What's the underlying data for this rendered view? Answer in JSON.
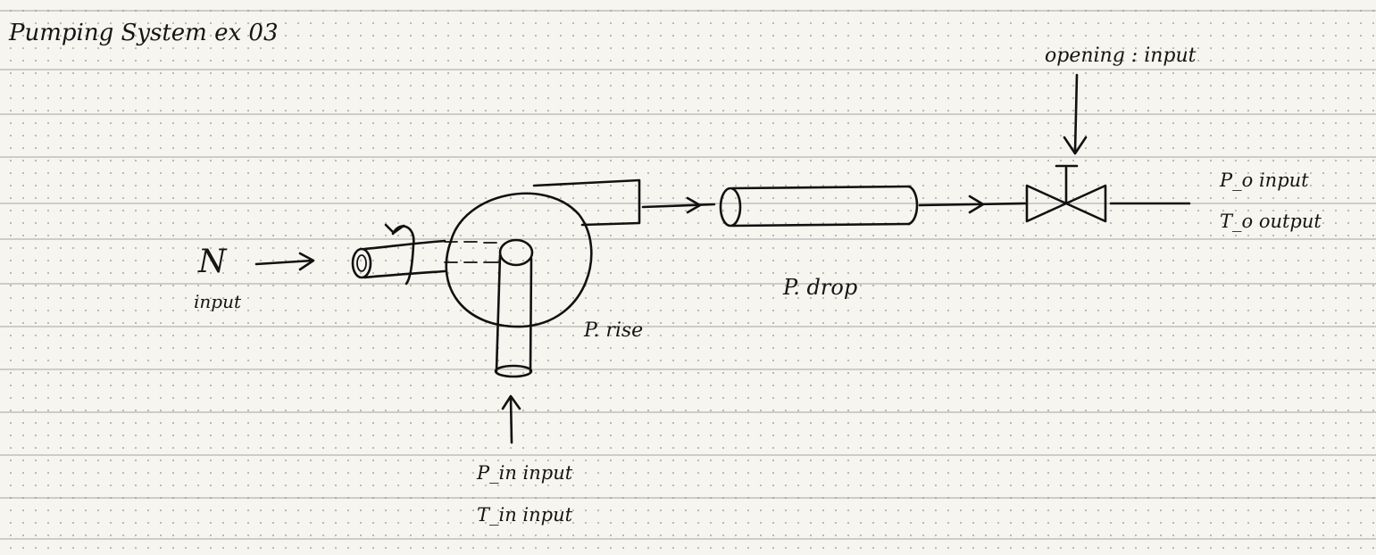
{
  "title": "Pumping System ex 03",
  "labels": {
    "valve_opening": "opening : input",
    "outlet_p": "P_o   input",
    "outlet_t": "T_o   output",
    "shaft_speed_symbol": "N",
    "shaft_speed_role": "input",
    "pump": "P. rise",
    "pipe": "P. drop",
    "inlet_p": "P_in    input",
    "inlet_t": "T_in    input"
  },
  "colors": {
    "paper": "#f7f5ef",
    "ink": "#111111",
    "rule_line": "#8a8a8a"
  }
}
